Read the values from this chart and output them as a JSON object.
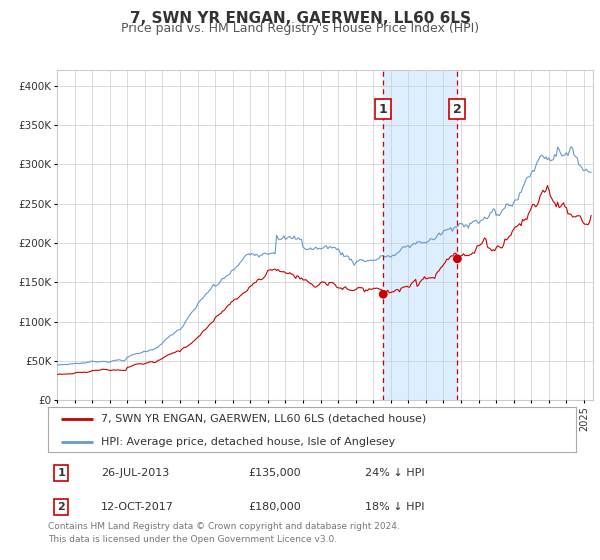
{
  "title": "7, SWN YR ENGAN, GAERWEN, LL60 6LS",
  "subtitle": "Price paid vs. HM Land Registry's House Price Index (HPI)",
  "legend_label_red": "7, SWN YR ENGAN, GAERWEN, LL60 6LS (detached house)",
  "legend_label_blue": "HPI: Average price, detached house, Isle of Anglesey",
  "footnote": "Contains HM Land Registry data © Crown copyright and database right 2024.\nThis data is licensed under the Open Government Licence v3.0.",
  "event1_date": "26-JUL-2013",
  "event1_price": "£135,000",
  "event1_hpi": "24% ↓ HPI",
  "event1_x": 2013.57,
  "event1_y": 135000,
  "event2_date": "12-OCT-2017",
  "event2_price": "£180,000",
  "event2_hpi": "18% ↓ HPI",
  "event2_x": 2017.79,
  "event2_y": 180000,
  "shade_x_start": 2013.57,
  "shade_x_end": 2017.79,
  "ylim": [
    0,
    420000
  ],
  "xlim": [
    1995.0,
    2025.5
  ],
  "ylabel_ticks": [
    0,
    50000,
    100000,
    150000,
    200000,
    250000,
    300000,
    350000,
    400000
  ],
  "ytick_labels": [
    "£0",
    "£50K",
    "£100K",
    "£150K",
    "£200K",
    "£250K",
    "£300K",
    "£350K",
    "£400K"
  ],
  "red_color": "#cc0000",
  "blue_color": "#6699cc",
  "shade_color": "#ddeeff",
  "grid_color": "#cccccc",
  "bg_color": "#ffffff",
  "title_fontsize": 11,
  "subtitle_fontsize": 9,
  "tick_fontsize": 7.5,
  "legend_fontsize": 8,
  "footnote_fontsize": 6.5,
  "label_color": "#333333",
  "footnote_color": "#777777"
}
